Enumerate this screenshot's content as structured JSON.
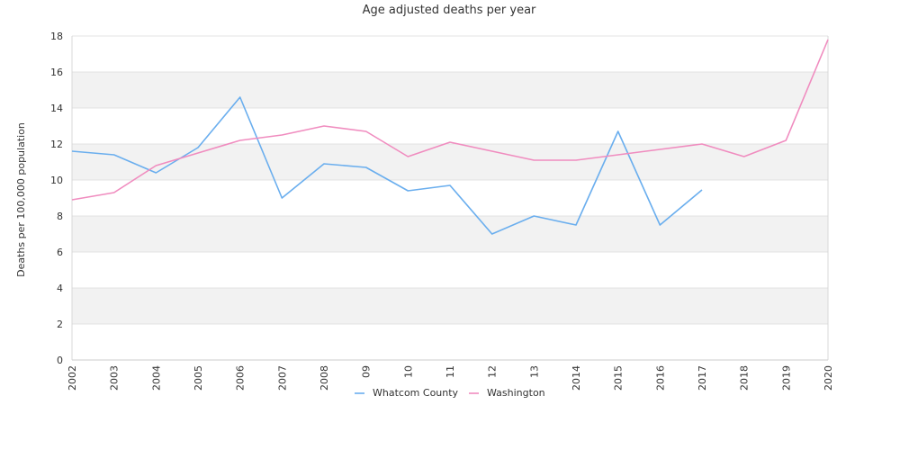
{
  "chart_data": {
    "type": "line",
    "title": "Age adjusted deaths per year",
    "xlabel": "",
    "ylabel": "Deaths per 100,000 population",
    "categories": [
      "2002",
      "2003",
      "2004",
      "2005",
      "2006",
      "2007",
      "2008",
      "09",
      "10",
      "11",
      "12",
      "13",
      "2014",
      "2015",
      "2016",
      "2017",
      "2018",
      "2019",
      "2020"
    ],
    "ylim": [
      0,
      18
    ],
    "yticks": [
      0,
      2,
      4,
      6,
      8,
      10,
      12,
      14,
      16,
      18
    ],
    "grid": "horizontal alternating bands",
    "legend_position": "bottom-center",
    "series": [
      {
        "name": "Whatcom County",
        "color": "#6aaeee",
        "values": [
          11.6,
          11.4,
          10.4,
          11.8,
          14.6,
          9.0,
          10.9,
          10.7,
          9.4,
          9.7,
          7.0,
          8.0,
          7.5,
          12.7,
          7.5,
          9.45,
          null,
          null,
          null
        ]
      },
      {
        "name": "Washington",
        "color": "#f08cbf",
        "values": [
          8.9,
          9.3,
          10.8,
          11.5,
          12.2,
          12.5,
          13.0,
          12.7,
          11.3,
          12.1,
          11.6,
          11.1,
          11.1,
          11.4,
          11.7,
          12.0,
          11.3,
          12.2,
          17.8
        ]
      }
    ]
  }
}
